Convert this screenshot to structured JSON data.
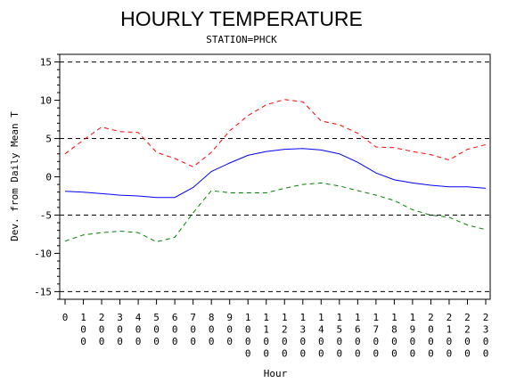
{
  "chart_data": {
    "type": "line",
    "title": "HOURLY TEMPERATURE",
    "subtitle": "STATION=PHCK",
    "xlabel": "Hour",
    "ylabel": "Dev. from Daily Mean T",
    "ylim": [
      -16,
      16
    ],
    "yticks": [
      -15,
      -10,
      -5,
      0,
      5,
      10,
      15
    ],
    "ytick_labels": [
      "-15",
      "-10",
      "-5",
      "0",
      "5",
      "10",
      "15"
    ],
    "reference_lines": [
      -15,
      -5,
      5,
      15
    ],
    "x": [
      0,
      100,
      200,
      300,
      400,
      500,
      600,
      700,
      800,
      900,
      1000,
      1100,
      1200,
      1300,
      1400,
      1500,
      1600,
      1700,
      1800,
      1900,
      2000,
      2100,
      2200,
      2300
    ],
    "xtick_labels": [
      "0",
      "100",
      "200",
      "300",
      "400",
      "500",
      "600",
      "700",
      "800",
      "900",
      "1000",
      "1100",
      "1200",
      "1300",
      "1400",
      "1500",
      "1600",
      "1700",
      "1800",
      "1900",
      "2000",
      "2100",
      "2200",
      "2300"
    ],
    "grid": false,
    "series": [
      {
        "color": "#ff0000",
        "style": "dashed",
        "values": [
          3.0,
          4.8,
          6.5,
          5.9,
          5.8,
          3.2,
          2.4,
          1.3,
          3.2,
          6.0,
          8.0,
          9.4,
          10.1,
          9.8,
          7.3,
          6.8,
          5.7,
          3.9,
          3.8,
          3.3,
          2.9,
          2.2,
          3.6,
          4.2
        ]
      },
      {
        "color": "#0000ff",
        "style": "solid",
        "values": [
          -1.9,
          -2.0,
          -2.2,
          -2.4,
          -2.5,
          -2.7,
          -2.7,
          -1.4,
          0.7,
          1.8,
          2.8,
          3.3,
          3.6,
          3.7,
          3.5,
          3.0,
          1.9,
          0.5,
          -0.4,
          -0.8,
          -1.1,
          -1.3,
          -1.3,
          -1.5
        ]
      },
      {
        "color": "#008000",
        "style": "dashed",
        "values": [
          -8.4,
          -7.6,
          -7.3,
          -7.1,
          -7.3,
          -8.5,
          -7.9,
          -4.7,
          -1.8,
          -2.1,
          -2.1,
          -2.1,
          -1.5,
          -1.0,
          -0.8,
          -1.2,
          -1.8,
          -2.4,
          -3.1,
          -4.3,
          -5.0,
          -5.3,
          -6.3,
          -6.9
        ]
      }
    ]
  }
}
